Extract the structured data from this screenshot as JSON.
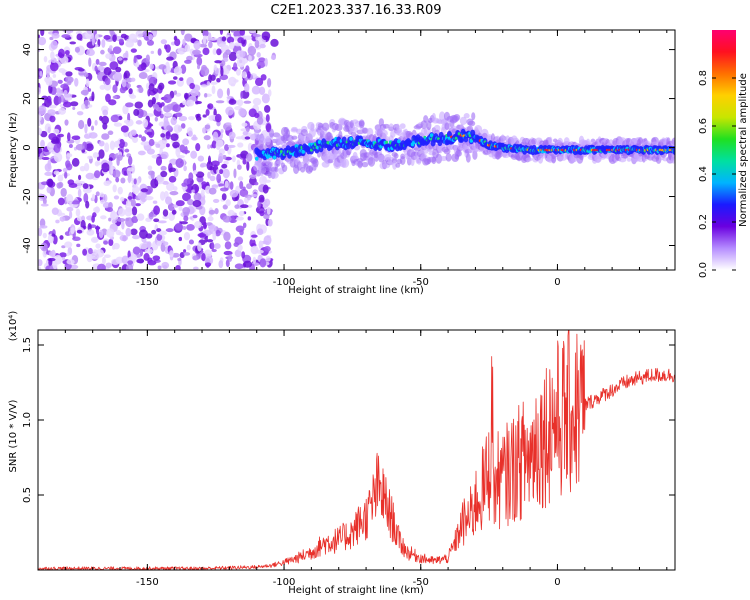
{
  "title": "C2E1.2023.337.16.33.R09",
  "chart_data": [
    {
      "type": "heatmap",
      "xlabel": "Height of straight line (km)",
      "ylabel": "Frequency (Hz)",
      "xlim": [
        -190,
        43
      ],
      "ylim": [
        -50,
        48
      ],
      "xticks": [
        -150,
        -100,
        -50,
        0
      ],
      "yticks": [
        -40,
        -20,
        0,
        20,
        40
      ],
      "colorbar": {
        "label": "Normalized spectral amplitude",
        "range": [
          0,
          1
        ],
        "ticks": [
          "0.0",
          "0.2",
          "0.4",
          "0.6",
          "0.8"
        ],
        "colormap": [
          "#ffffff",
          "#b58cff",
          "#6a00e0",
          "#1a1aff",
          "#00b4ff",
          "#00e0a0",
          "#20e020",
          "#c8e600",
          "#ffd000",
          "#ff7000",
          "#ff1020",
          "#ff0070"
        ]
      },
      "features": {
        "noise_region_x": [
          -190,
          -105
        ],
        "track": {
          "x": [
            -110,
            -100,
            -90,
            -80,
            -70,
            -60,
            -50,
            -40,
            -35,
            -30,
            -25,
            -20,
            -10,
            0,
            10,
            20,
            30,
            43
          ],
          "y": [
            -3,
            -2,
            0,
            2,
            2,
            1,
            3,
            4,
            5,
            4,
            1,
            0,
            -1,
            -1,
            -1,
            -1,
            -1,
            -1
          ]
        }
      }
    },
    {
      "type": "line",
      "xlabel": "Height of straight line (km)",
      "ylabel": "SNR (10 * V/V)",
      "multiplier": "(x10⁴)",
      "xlim": [
        -190,
        43
      ],
      "ylim": [
        0,
        1.6
      ],
      "xticks": [
        -150,
        -100,
        -50,
        0
      ],
      "yticks": [
        0.5,
        1.0,
        1.5
      ],
      "ytick_labels": [
        "0.5",
        "1.0",
        "1.5"
      ],
      "series": [
        {
          "color": "#e8302a",
          "x": [
            -190,
            -160,
            -130,
            -110,
            -105,
            -100,
            -95,
            -90,
            -85,
            -80,
            -75,
            -72,
            -70,
            -68,
            -66,
            -64,
            -62,
            -60,
            -58,
            -55,
            -50,
            -45,
            -40,
            -37,
            -35,
            -32,
            -30,
            -27,
            -25,
            -24,
            -23,
            -22,
            -20,
            -18,
            -15,
            -12,
            -10,
            -8,
            -5,
            -2,
            0,
            5,
            10,
            15,
            20,
            25,
            30,
            35,
            43
          ],
          "y": [
            0.01,
            0.01,
            0.01,
            0.02,
            0.03,
            0.05,
            0.08,
            0.12,
            0.18,
            0.2,
            0.25,
            0.32,
            0.35,
            0.42,
            0.55,
            0.5,
            0.4,
            0.32,
            0.2,
            0.12,
            0.08,
            0.06,
            0.08,
            0.2,
            0.3,
            0.35,
            0.45,
            0.55,
            0.65,
            1.1,
            0.5,
            0.6,
            0.6,
            0.65,
            0.7,
            0.75,
            0.75,
            0.85,
            0.9,
            1.0,
            1.0,
            1.05,
            1.1,
            1.15,
            1.2,
            1.25,
            1.28,
            1.3,
            1.3
          ]
        }
      ]
    }
  ]
}
